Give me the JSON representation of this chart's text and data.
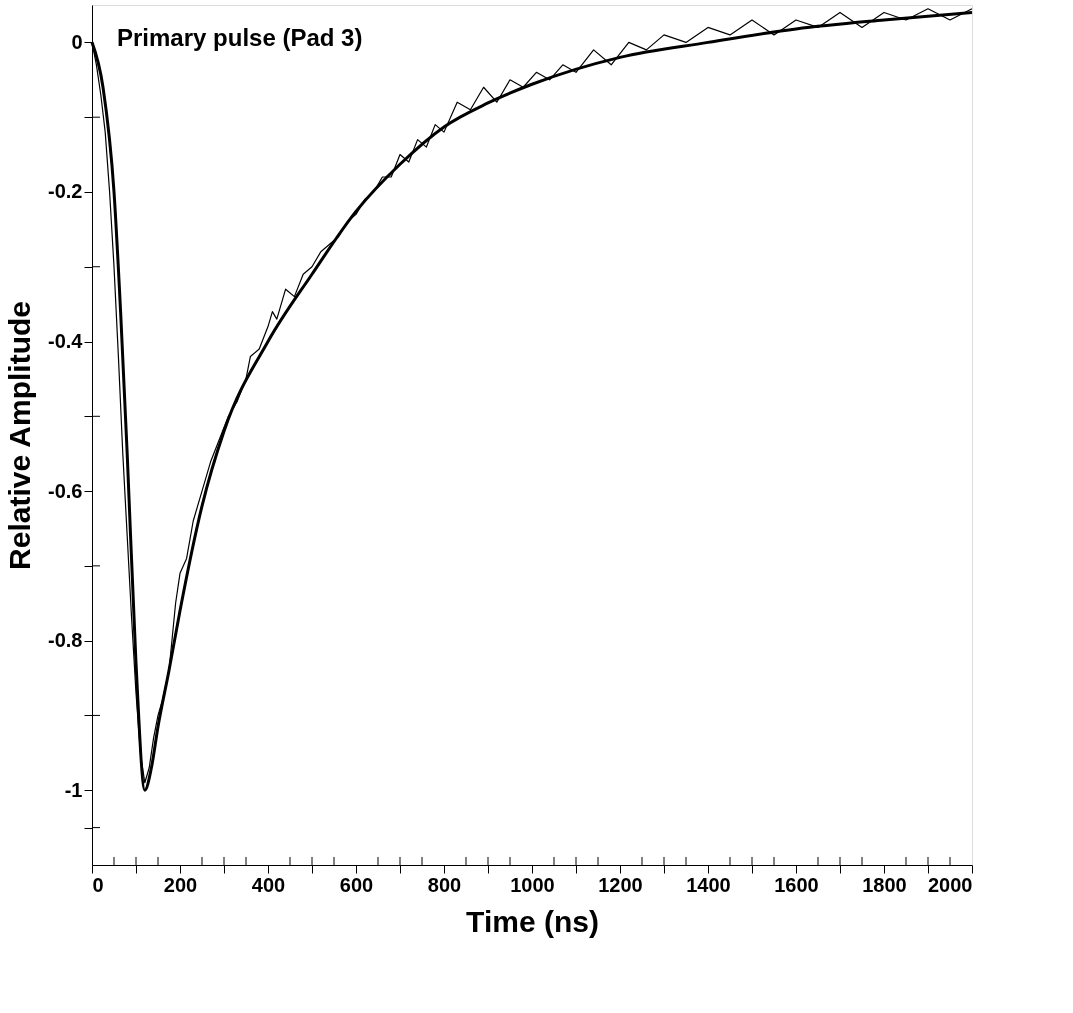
{
  "chart_data": {
    "type": "line",
    "xlabel": "Time (ns)",
    "ylabel": "Relative Amplitude",
    "annotations": [
      "Primary pulse (Pad 3)"
    ],
    "xlim": [
      0,
      2000
    ],
    "ylim": [
      -1.1,
      0.05
    ],
    "xticks": [
      0,
      {
        "value": 50,
        "label": null
      },
      {
        "value": 100,
        "label": null
      },
      {
        "value": 150,
        "label": null
      },
      200,
      {
        "value": 250,
        "label": null
      },
      {
        "value": 300,
        "label": null
      },
      {
        "value": 350,
        "label": null
      },
      400,
      {
        "value": 450,
        "label": null
      },
      {
        "value": 500,
        "label": null
      },
      {
        "value": 550,
        "label": null
      },
      600,
      {
        "value": 650,
        "label": null
      },
      {
        "value": 700,
        "label": null
      },
      {
        "value": 750,
        "label": null
      },
      800,
      {
        "value": 850,
        "label": null
      },
      {
        "value": 900,
        "label": null
      },
      {
        "value": 950,
        "label": null
      },
      1000,
      {
        "value": 1050,
        "label": null
      },
      {
        "value": 1100,
        "label": null
      },
      {
        "value": 1150,
        "label": null
      },
      1200,
      {
        "value": 1250,
        "label": null
      },
      {
        "value": 1300,
        "label": null
      },
      {
        "value": 1350,
        "label": null
      },
      1400,
      {
        "value": 1450,
        "label": null
      },
      {
        "value": 1500,
        "label": null
      },
      {
        "value": 1550,
        "label": null
      },
      1600,
      {
        "value": 1650,
        "label": null
      },
      {
        "value": 1700,
        "label": null
      },
      {
        "value": 1750,
        "label": null
      },
      1800,
      {
        "value": 1850,
        "label": null
      },
      {
        "value": 1900,
        "label": null
      },
      {
        "value": 1950,
        "label": null
      },
      2000
    ],
    "yticks": [
      0,
      {
        "value": -0.1,
        "label": null
      },
      -0.2,
      {
        "value": -0.3,
        "label": null
      },
      -0.4,
      {
        "value": -0.5,
        "label": null
      },
      -0.6,
      {
        "value": -0.7,
        "label": null
      },
      -0.8,
      {
        "value": -0.9,
        "label": null
      },
      -1,
      {
        "value": -1.05,
        "label": null
      }
    ],
    "grid": false,
    "marker": "none",
    "series": [
      {
        "color": "#000000",
        "line_style": "solid",
        "x": [
          0,
          10,
          20,
          30,
          40,
          50,
          60,
          70,
          80,
          90,
          100,
          110,
          120,
          130,
          140,
          150,
          160,
          175,
          190,
          200,
          215,
          230,
          250,
          270,
          290,
          310,
          330,
          350,
          360,
          380,
          400,
          410,
          420,
          440,
          460,
          480,
          500,
          520,
          540,
          560,
          580,
          600,
          620,
          640,
          660,
          680,
          700,
          720,
          740,
          760,
          780,
          800,
          830,
          860,
          890,
          920,
          950,
          980,
          1010,
          1040,
          1070,
          1100,
          1140,
          1180,
          1220,
          1260,
          1300,
          1350,
          1400,
          1450,
          1500,
          1550,
          1600,
          1650,
          1700,
          1750,
          1800,
          1850,
          1900,
          1950,
          2000
        ],
        "values": [
          0.0,
          -0.03,
          -0.07,
          -0.12,
          -0.2,
          -0.3,
          -0.42,
          -0.55,
          -0.66,
          -0.77,
          -0.87,
          -0.95,
          -0.99,
          -0.97,
          -0.93,
          -0.9,
          -0.88,
          -0.84,
          -0.75,
          -0.71,
          -0.69,
          -0.64,
          -0.6,
          -0.56,
          -0.53,
          -0.5,
          -0.48,
          -0.45,
          -0.42,
          -0.41,
          -0.38,
          -0.36,
          -0.37,
          -0.33,
          -0.34,
          -0.31,
          -0.3,
          -0.28,
          -0.27,
          -0.26,
          -0.24,
          -0.23,
          -0.21,
          -0.2,
          -0.18,
          -0.18,
          -0.15,
          -0.16,
          -0.13,
          -0.14,
          -0.11,
          -0.12,
          -0.08,
          -0.09,
          -0.06,
          -0.08,
          -0.05,
          -0.06,
          -0.04,
          -0.05,
          -0.03,
          -0.04,
          -0.01,
          -0.03,
          0.0,
          -0.01,
          0.01,
          0.0,
          0.02,
          0.01,
          0.03,
          0.01,
          0.03,
          0.02,
          0.04,
          0.02,
          0.04,
          0.03,
          0.045,
          0.03,
          0.045
        ]
      },
      {
        "color": "#000000",
        "line_style": "solid",
        "x": [
          0,
          25,
          50,
          65,
          80,
          100,
          120,
          135,
          150,
          175,
          200,
          250,
          300,
          400,
          500,
          600,
          700,
          800,
          900,
          1000,
          1200,
          1400,
          1600,
          1800,
          2000
        ],
        "values": [
          0.0,
          -0.06,
          -0.2,
          -0.36,
          -0.55,
          -0.83,
          -1.0,
          -0.97,
          -0.915,
          -0.84,
          -0.76,
          -0.62,
          -0.52,
          -0.4,
          -0.31,
          -0.226,
          -0.163,
          -0.113,
          -0.081,
          -0.056,
          -0.02,
          0.0,
          0.018,
          0.03,
          0.04
        ]
      }
    ]
  }
}
